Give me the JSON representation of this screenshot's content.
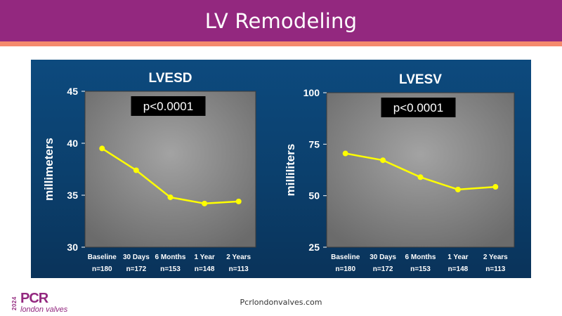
{
  "header": {
    "title": "LV Remodeling"
  },
  "footer": {
    "url": "Pcrlondonvalves.com"
  },
  "logo": {
    "year": "2024",
    "name": "PCR",
    "subtitle": "london valves"
  },
  "colors": {
    "header_bg": "#93287f",
    "stripe": "#f58a6d",
    "panel_bg": "#0b3f6c",
    "series": "#ffff00",
    "text_light": "#ffffff"
  },
  "chart_data": [
    {
      "type": "line",
      "title": "LVESD",
      "ylabel": "millimeters",
      "xlabel": "",
      "categories": [
        "Baseline",
        "30 Days",
        "6 Months",
        "1 Year",
        "2 Years"
      ],
      "n_labels": [
        "n=180",
        "n=172",
        "n=153",
        "n=148",
        "n=113"
      ],
      "series": [
        {
          "values": [
            39.5,
            37.4,
            34.8,
            34.2,
            34.4
          ]
        }
      ],
      "ylim": [
        30,
        45
      ],
      "yticks": [
        30,
        35,
        40,
        45
      ],
      "annotation": "p<0.0001",
      "grid": false
    },
    {
      "type": "line",
      "title": "LVESV",
      "ylabel": "milliliters",
      "xlabel": "",
      "categories": [
        "Baseline",
        "30 Days",
        "6 Months",
        "1 Year",
        "2 Years"
      ],
      "n_labels": [
        "n=180",
        "n=172",
        "n=153",
        "n=148",
        "n=113"
      ],
      "series": [
        {
          "values": [
            70.5,
            67.2,
            59,
            53,
            54.3
          ]
        }
      ],
      "ylim": [
        25,
        100
      ],
      "yticks": [
        25,
        50,
        75,
        100
      ],
      "annotation": "p<0.0001",
      "grid": false
    }
  ]
}
